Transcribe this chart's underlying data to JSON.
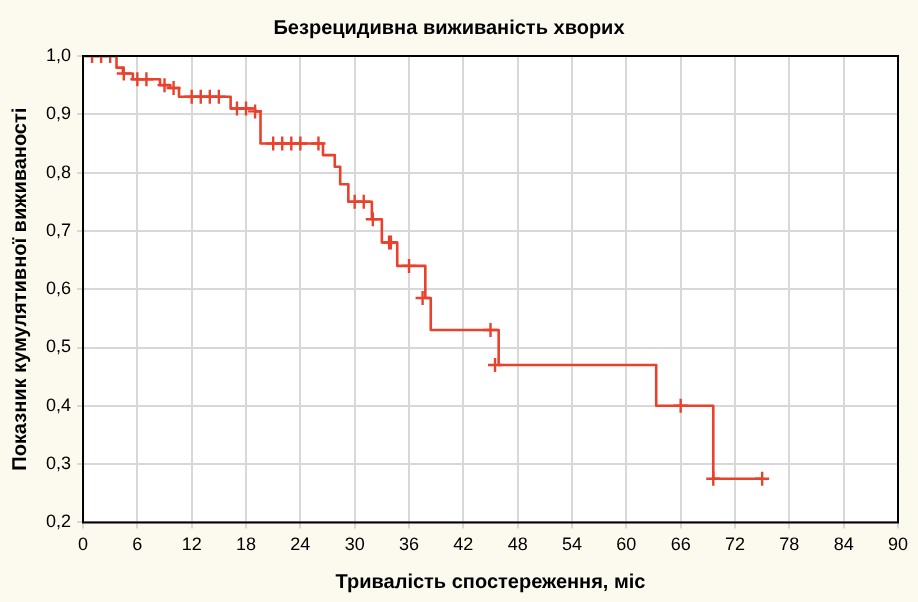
{
  "chart_data": {
    "type": "step",
    "title": "Безрецидивна виживаність хворих",
    "xlabel": "Тривалість спостереження, міс",
    "ylabel": "Показник кумулятивної виживаності",
    "series": [
      {
        "color": "#e8412c",
        "marker": "none",
        "x": [
          0,
          3.7,
          4.4,
          5.5,
          8.5,
          9.6,
          10.6,
          16.3,
          19,
          19.6,
          26.5,
          27.8,
          28.4,
          29.3,
          31.9,
          33,
          34.7,
          37.8,
          38.4,
          45.9,
          63.3,
          69.6,
          75
        ],
        "values": [
          1,
          0.98,
          0.97,
          0.96,
          0.95,
          0.945,
          0.93,
          0.91,
          0.905,
          0.85,
          0.83,
          0.81,
          0.78,
          0.75,
          0.72,
          0.68,
          0.64,
          0.585,
          0.53,
          0.47,
          0.4,
          0.275,
          0.275
        ]
      },
      {
        "type": "scatter",
        "color": "#e8412c",
        "marker": "cross",
        "x": [
          1,
          2,
          3,
          4.5,
          6,
          7,
          9,
          10,
          12,
          13,
          14,
          15,
          17,
          18,
          19,
          21,
          22,
          23,
          24,
          26,
          30,
          31,
          32,
          33.8,
          34,
          36,
          37.5,
          45,
          45.5,
          66,
          69.6,
          75
        ],
        "values": [
          1,
          1,
          1,
          0.97,
          0.96,
          0.96,
          0.95,
          0.945,
          0.93,
          0.93,
          0.93,
          0.93,
          0.91,
          0.91,
          0.905,
          0.85,
          0.85,
          0.85,
          0.85,
          0.85,
          0.75,
          0.75,
          0.72,
          0.68,
          0.68,
          0.64,
          0.585,
          0.53,
          0.47,
          0.4,
          0.275,
          0.275
        ]
      }
    ],
    "xlim": [
      0,
      90
    ],
    "xticks": [
      0,
      6,
      12,
      18,
      24,
      30,
      36,
      42,
      48,
      54,
      60,
      66,
      72,
      78,
      84,
      90
    ],
    "ylim": [
      0.2,
      1.0
    ],
    "yticks": [
      {
        "value": 0.2,
        "label": "0,2"
      },
      {
        "value": 0.3,
        "label": "0,3"
      },
      {
        "value": 0.4,
        "label": "0,4"
      },
      {
        "value": 0.5,
        "label": "0,5"
      },
      {
        "value": 0.6,
        "label": "0,6"
      },
      {
        "value": 0.7,
        "label": "0,7"
      },
      {
        "value": 0.8,
        "label": "0,8"
      },
      {
        "value": 0.9,
        "label": "0,9"
      },
      {
        "value": 1.0,
        "label": "1,0"
      }
    ],
    "grid": true,
    "legend": false
  }
}
